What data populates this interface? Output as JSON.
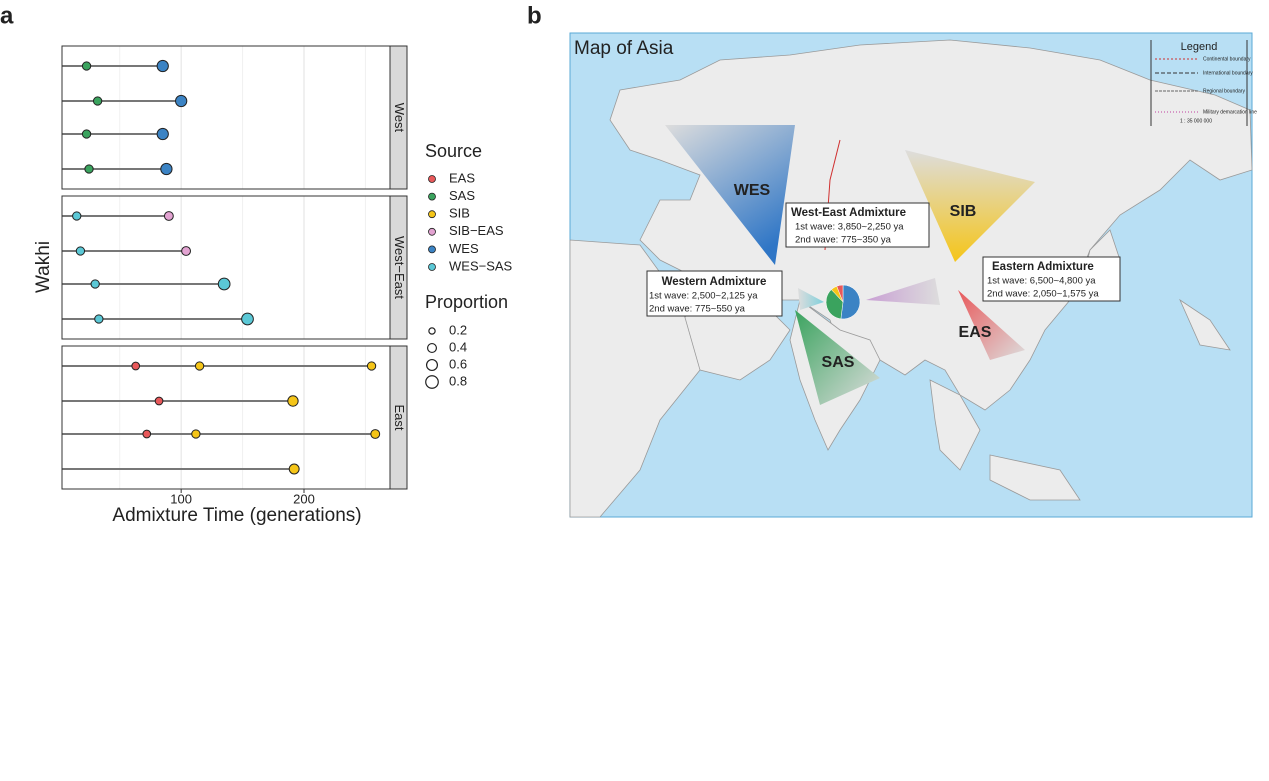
{
  "panel_labels": [
    "a",
    "b"
  ],
  "chart_data": {
    "type": "dot",
    "y_label": "Wakhi",
    "x_label": "Admixture Time (generations)",
    "xlim": [
      3,
      270
    ],
    "xticks": [
      100,
      200
    ],
    "xminor": [
      50,
      150,
      250
    ],
    "grid": true,
    "legend_title": "Source",
    "series": [
      {
        "name": "EAS",
        "color": "#e8585a"
      },
      {
        "name": "SAS",
        "color": "#3aa35e"
      },
      {
        "name": "SIB",
        "color": "#f5c518"
      },
      {
        "name": "SIB−EAS",
        "color": "#e3a3d2"
      },
      {
        "name": "WES",
        "color": "#3b83c4"
      },
      {
        "name": "WES−SAS",
        "color": "#5bc8d6"
      }
    ],
    "size_legend": {
      "title": "Proportion",
      "values": [
        0.2,
        0.4,
        0.6,
        0.8
      ]
    },
    "facets": [
      {
        "name": "West",
        "rows": [
          [
            {
              "source": "SAS",
              "time": 23,
              "proportion": 0.35
            },
            {
              "source": "WES",
              "time": 85,
              "proportion": 0.65
            }
          ],
          [
            {
              "source": "SAS",
              "time": 32,
              "proportion": 0.35
            },
            {
              "source": "WES",
              "time": 100,
              "proportion": 0.65
            }
          ],
          [
            {
              "source": "SAS",
              "time": 23,
              "proportion": 0.35
            },
            {
              "source": "WES",
              "time": 85,
              "proportion": 0.65
            }
          ],
          [
            {
              "source": "SAS",
              "time": 25,
              "proportion": 0.35
            },
            {
              "source": "WES",
              "time": 88,
              "proportion": 0.65
            }
          ]
        ]
      },
      {
        "name": "West−East",
        "rows": [
          [
            {
              "source": "WES−SAS",
              "time": 15,
              "proportion": 0.35
            },
            {
              "source": "SIB−EAS",
              "time": 90,
              "proportion": 0.4
            }
          ],
          [
            {
              "source": "WES−SAS",
              "time": 18,
              "proportion": 0.35
            },
            {
              "source": "SIB−EAS",
              "time": 104,
              "proportion": 0.4
            }
          ],
          [
            {
              "source": "WES−SAS",
              "time": 30,
              "proportion": 0.35
            },
            {
              "source": "WES−SAS",
              "time": 135,
              "proportion": 0.7
            }
          ],
          [
            {
              "source": "WES−SAS",
              "time": 33,
              "proportion": 0.35
            },
            {
              "source": "WES−SAS",
              "time": 154,
              "proportion": 0.7
            }
          ]
        ]
      },
      {
        "name": "East",
        "rows": [
          [
            {
              "source": "EAS",
              "time": 63,
              "proportion": 0.3
            },
            {
              "source": "SIB",
              "time": 115,
              "proportion": 0.35
            },
            {
              "source": "SIB",
              "time": 255,
              "proportion": 0.35
            }
          ],
          [
            {
              "source": "EAS",
              "time": 82,
              "proportion": 0.3
            },
            {
              "source": "SIB",
              "time": 191,
              "proportion": 0.55
            }
          ],
          [
            {
              "source": "EAS",
              "time": 72,
              "proportion": 0.3
            },
            {
              "source": "SIB",
              "time": 112,
              "proportion": 0.35
            },
            {
              "source": "SIB",
              "time": 258,
              "proportion": 0.4
            }
          ],
          [
            {
              "source": "SIB",
              "time": 192,
              "proportion": 0.5
            }
          ]
        ]
      }
    ]
  },
  "map": {
    "title": "Map of Asia",
    "legend": {
      "title": "Legend",
      "items": [
        "Continental boundary",
        "International boundary",
        "Regional boundary",
        "Military demarcation line"
      ],
      "scale": "1 : 35 000 000"
    },
    "arrows": [
      "WES",
      "SIB",
      "SAS",
      "EAS"
    ],
    "boxes": [
      {
        "title": "West-East Admixture",
        "lines": [
          "1st wave: 3,850~2,250 ya",
          "2nd wave: 775~350 ya"
        ]
      },
      {
        "title": "Western Admixture",
        "lines": [
          "1st wave: 2,500~2,125 ya",
          "2nd wave: 775~550 ya"
        ]
      },
      {
        "title": "Eastern Admixture",
        "lines": [
          "1st wave: 6,500~4,800 ya",
          "2nd wave: 2,050~1,575 ya"
        ]
      }
    ],
    "pie": {
      "values": [
        52,
        36,
        6,
        6
      ],
      "colors": [
        "#3b83c4",
        "#3aa35e",
        "#f5c518",
        "#e8585a"
      ]
    }
  }
}
